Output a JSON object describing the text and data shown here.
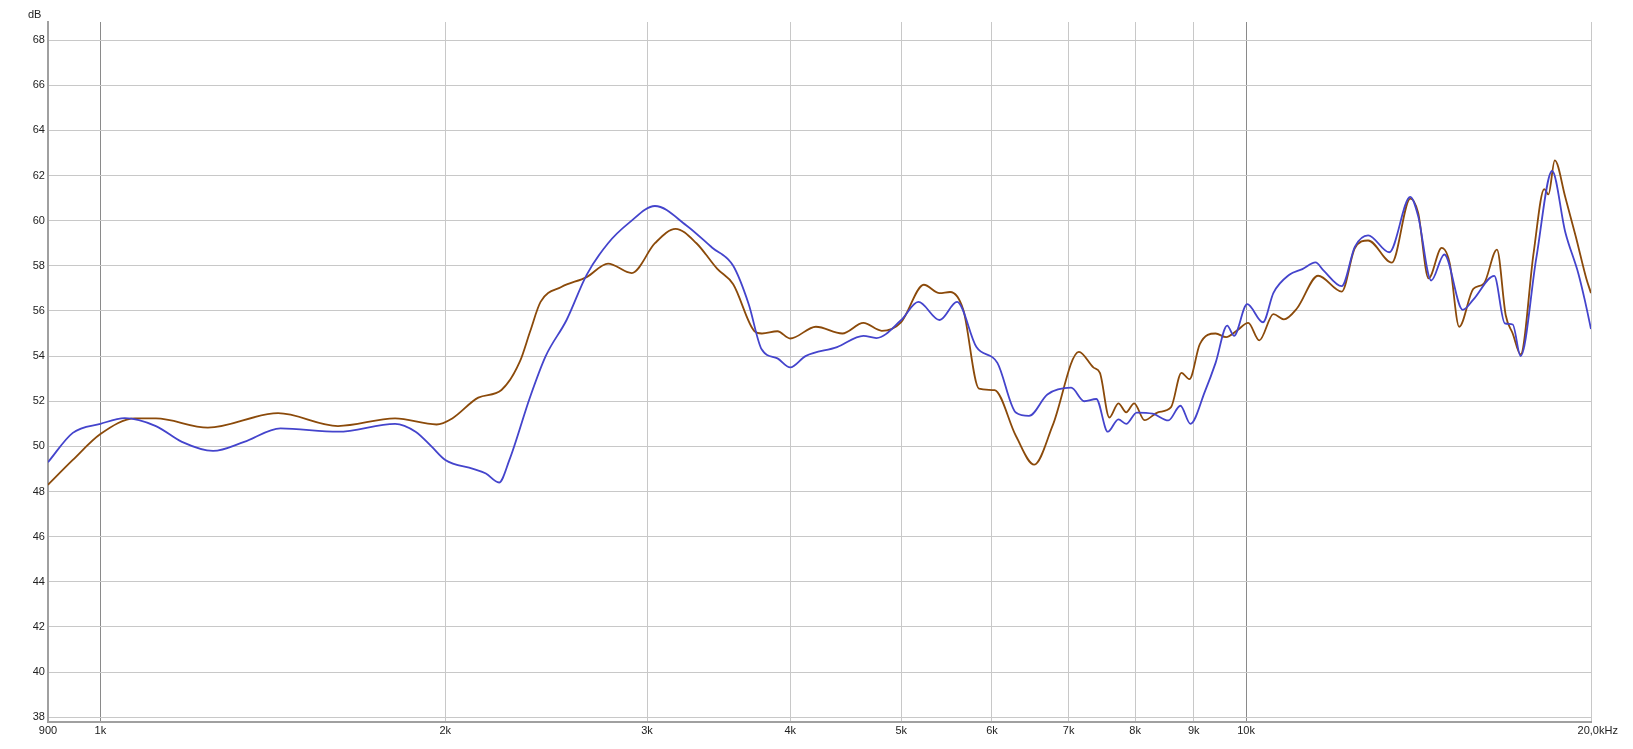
{
  "chart_data": {
    "type": "line",
    "ylabel": "dB",
    "log": "x",
    "grid": true,
    "xlim": [
      900,
      20000
    ],
    "ylim": [
      37.8,
      68.8
    ],
    "xticks": [
      900,
      {
        "value": 1000,
        "label": "1k"
      },
      {
        "value": 2000,
        "label": "2k"
      },
      {
        "value": 3000,
        "label": "3k"
      },
      {
        "value": 4000,
        "label": "4k"
      },
      {
        "value": 5000,
        "label": "5k"
      },
      {
        "value": 6000,
        "label": "6k"
      },
      {
        "value": 7000,
        "label": "7k"
      },
      {
        "value": 8000,
        "label": "8k"
      },
      {
        "value": 9000,
        "label": "9k"
      },
      {
        "value": 10000,
        "label": "10k"
      },
      {
        "value": 20000,
        "label": "20,0k"
      }
    ],
    "xlabel": "Hz",
    "yticks": [
      38,
      40,
      42,
      44,
      46,
      48,
      50,
      52,
      54,
      56,
      58,
      60,
      62,
      64,
      66,
      68
    ],
    "series": [
      {
        "color": "#4444cc",
        "x": [
          900,
          946,
          1000,
          1050,
          1118,
          1178,
          1254,
          1335,
          1436,
          1612,
          1808,
          1884,
          1945,
          2000,
          2115,
          2170,
          2228,
          2275,
          2372,
          2447,
          2552,
          2657,
          2774,
          2893,
          3048,
          3245,
          3420,
          3567,
          3680,
          3777,
          3899,
          4000,
          4125,
          4395,
          4634,
          4757,
          5000,
          5175,
          5401,
          5594,
          5816,
          6066,
          6295,
          6464,
          6707,
          7035,
          7223,
          7400,
          7573,
          7736,
          7858,
          8027,
          8286,
          8553,
          8763,
          8941,
          9208,
          9405,
          9627,
          9759,
          10021,
          10344,
          10565,
          10906,
          11197,
          11497,
          11681,
          12119,
          12445,
          12779,
          13333,
          13909,
          14130,
          14506,
          14894,
          15456,
          15787,
          16466,
          16818,
          17088,
          17362,
          17919,
          18496,
          18991,
          19500,
          19748,
          20000
        ],
        "values": [
          49.3,
          50.6,
          51.0,
          51.25,
          50.9,
          50.2,
          49.8,
          50.2,
          50.8,
          50.65,
          51.0,
          50.65,
          50.0,
          49.4,
          49.0,
          48.8,
          48.4,
          49.4,
          52.2,
          54.0,
          55.6,
          57.6,
          59.0,
          59.9,
          60.65,
          59.8,
          58.8,
          58.0,
          56.3,
          54.3,
          53.9,
          53.5,
          54.0,
          54.4,
          54.9,
          54.8,
          55.6,
          56.4,
          55.6,
          56.4,
          54.4,
          53.7,
          51.5,
          51.35,
          52.3,
          52.6,
          52.0,
          52.1,
          50.65,
          51.2,
          51.0,
          51.5,
          51.45,
          51.15,
          51.8,
          51.0,
          52.45,
          53.7,
          55.35,
          54.9,
          56.3,
          55.5,
          56.8,
          57.6,
          57.85,
          58.15,
          57.8,
          57.1,
          58.85,
          59.35,
          58.6,
          61.05,
          60.2,
          57.35,
          58.5,
          56.05,
          56.5,
          57.55,
          55.45,
          55.4,
          54.0,
          58.35,
          62.2,
          59.5,
          57.65,
          56.5,
          55.2
        ]
      },
      {
        "color": "#8b4a0a",
        "x": [
          900,
          946,
          1000,
          1072,
          1118,
          1241,
          1429,
          1612,
          1808,
          1965,
          2028,
          2137,
          2239,
          2323,
          2372,
          2422,
          2525,
          2657,
          2774,
          2909,
          3048,
          3177,
          3313,
          3455,
          3567,
          3720,
          3777,
          3899,
          4000,
          4212,
          4442,
          4634,
          4808,
          5000,
          5232,
          5401,
          5516,
          5664,
          5845,
          6033,
          6295,
          6532,
          6779,
          7146,
          7360,
          7454,
          7597,
          7736,
          7858,
          7985,
          8154,
          8375,
          8600,
          8781,
          8923,
          9112,
          9405,
          9607,
          9811,
          10042,
          10268,
          10565,
          10790,
          11078,
          11558,
          12119,
          12445,
          12779,
          13403,
          13909,
          14130,
          14429,
          14815,
          15052,
          15345,
          15787,
          16125,
          16555,
          16850,
          17088,
          17362,
          17824,
          18206,
          18361,
          18596,
          18991,
          19397,
          19812,
          20000
        ],
        "values": [
          48.3,
          49.4,
          50.55,
          51.24,
          51.24,
          50.83,
          51.47,
          50.9,
          51.24,
          50.97,
          51.24,
          52.16,
          52.5,
          53.75,
          55.1,
          56.4,
          57.06,
          57.5,
          58.1,
          57.68,
          59.0,
          59.64,
          59.0,
          57.86,
          57.18,
          55.12,
          55.0,
          55.1,
          54.78,
          55.3,
          55.0,
          55.47,
          55.12,
          55.51,
          57.16,
          56.79,
          56.84,
          56.05,
          52.56,
          52.49,
          50.47,
          49.19,
          50.93,
          54.19,
          53.49,
          53.26,
          51.28,
          51.91,
          51.51,
          51.91,
          51.16,
          51.51,
          51.74,
          53.26,
          52.98,
          54.53,
          55.0,
          54.84,
          55.12,
          55.47,
          54.7,
          55.86,
          55.63,
          56.12,
          57.56,
          56.86,
          58.79,
          59.12,
          58.14,
          60.98,
          60.35,
          57.44,
          58.79,
          58.14,
          55.3,
          56.98,
          57.21,
          58.72,
          55.81,
          55.0,
          54.07,
          58.6,
          61.4,
          61.16,
          62.67,
          61.05,
          59.3,
          57.44,
          56.79
        ]
      }
    ]
  }
}
